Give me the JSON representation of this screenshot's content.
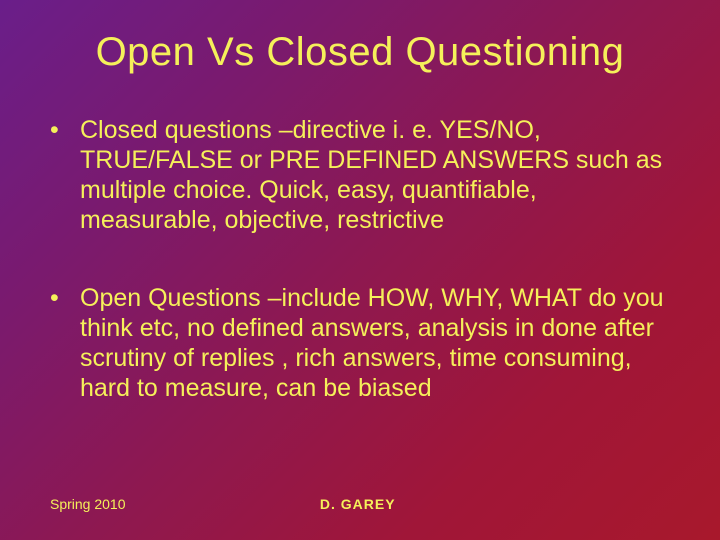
{
  "slide": {
    "title": "Open Vs Closed Questioning",
    "bullets": [
      "Closed questions –directive i. e. YES/NO, TRUE/FALSE or PRE DEFINED ANSWERS such as multiple choice. Quick, easy, quantifiable, measurable, objective, restrictive",
      "Open Questions –include HOW, WHY, WHAT do you think etc, no defined answers, analysis in done after scrutiny of replies , rich answers, time consuming, hard to measure, can be biased"
    ],
    "footer": {
      "left": "Spring 2010",
      "center": "D. GAREY"
    },
    "style": {
      "text_color": "#f5f05a",
      "background_gradient": {
        "direction": "135deg",
        "stops": [
          "#6a1e8a",
          "#7a1a6e",
          "#8e1850",
          "#a01638",
          "#a8182c"
        ]
      },
      "title_fontsize": 40,
      "body_fontsize": 25,
      "footer_fontsize": 14,
      "font_family": "Arial"
    }
  }
}
